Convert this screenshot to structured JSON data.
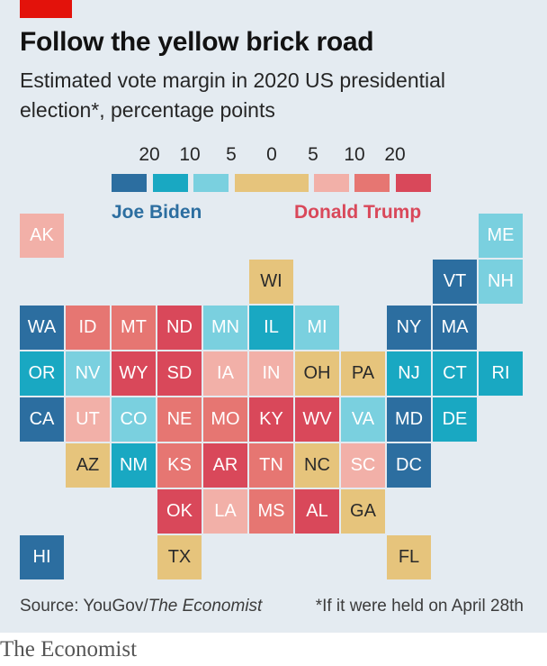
{
  "header": {
    "title": "Follow the yellow brick road",
    "subtitle": "Estimated vote margin in 2020 US presidential election*, percentage points"
  },
  "legend": {
    "ticks": [
      "20",
      "10",
      "5",
      "0",
      "5",
      "10",
      "20"
    ],
    "biden_label": "Joe Biden",
    "trump_label": "Donald Trump",
    "colors": {
      "biden_20": "#2c6ea0",
      "biden_10": "#19a8c2",
      "biden_5": "#7ad0df",
      "tossup": "#e6c47c",
      "trump_5": "#f2b0a8",
      "trump_10": "#e67672",
      "trump_20": "#d9485a"
    }
  },
  "chart_data": {
    "type": "tile-map",
    "categories": [
      "biden_20",
      "biden_10",
      "biden_5",
      "tossup",
      "trump_5",
      "trump_10",
      "trump_20"
    ],
    "category_meaning": {
      "biden_20": "Biden margin 20+",
      "biden_10": "Biden margin 10-20",
      "biden_5": "Biden margin 5-10",
      "tossup": "margin 0-5",
      "trump_5": "Trump margin 5-10",
      "trump_10": "Trump margin 10-20",
      "trump_20": "Trump margin 20+"
    },
    "states": [
      {
        "abbr": "AK",
        "col": 0,
        "row": 0,
        "cat": "trump_5"
      },
      {
        "abbr": "ME",
        "col": 10,
        "row": 0,
        "cat": "biden_5"
      },
      {
        "abbr": "WI",
        "col": 5,
        "row": 1,
        "cat": "tossup"
      },
      {
        "abbr": "VT",
        "col": 9,
        "row": 1,
        "cat": "biden_20"
      },
      {
        "abbr": "NH",
        "col": 10,
        "row": 1,
        "cat": "biden_5"
      },
      {
        "abbr": "WA",
        "col": 0,
        "row": 2,
        "cat": "biden_20"
      },
      {
        "abbr": "ID",
        "col": 1,
        "row": 2,
        "cat": "trump_10"
      },
      {
        "abbr": "MT",
        "col": 2,
        "row": 2,
        "cat": "trump_10"
      },
      {
        "abbr": "ND",
        "col": 3,
        "row": 2,
        "cat": "trump_20"
      },
      {
        "abbr": "MN",
        "col": 4,
        "row": 2,
        "cat": "biden_5"
      },
      {
        "abbr": "IL",
        "col": 5,
        "row": 2,
        "cat": "biden_10"
      },
      {
        "abbr": "MI",
        "col": 6,
        "row": 2,
        "cat": "biden_5"
      },
      {
        "abbr": "NY",
        "col": 8,
        "row": 2,
        "cat": "biden_20"
      },
      {
        "abbr": "MA",
        "col": 9,
        "row": 2,
        "cat": "biden_20"
      },
      {
        "abbr": "OR",
        "col": 0,
        "row": 3,
        "cat": "biden_10"
      },
      {
        "abbr": "NV",
        "col": 1,
        "row": 3,
        "cat": "biden_5"
      },
      {
        "abbr": "WY",
        "col": 2,
        "row": 3,
        "cat": "trump_20"
      },
      {
        "abbr": "SD",
        "col": 3,
        "row": 3,
        "cat": "trump_20"
      },
      {
        "abbr": "IA",
        "col": 4,
        "row": 3,
        "cat": "trump_5"
      },
      {
        "abbr": "IN",
        "col": 5,
        "row": 3,
        "cat": "trump_5"
      },
      {
        "abbr": "OH",
        "col": 6,
        "row": 3,
        "cat": "tossup"
      },
      {
        "abbr": "PA",
        "col": 7,
        "row": 3,
        "cat": "tossup"
      },
      {
        "abbr": "NJ",
        "col": 8,
        "row": 3,
        "cat": "biden_10"
      },
      {
        "abbr": "CT",
        "col": 9,
        "row": 3,
        "cat": "biden_10"
      },
      {
        "abbr": "RI",
        "col": 10,
        "row": 3,
        "cat": "biden_10"
      },
      {
        "abbr": "CA",
        "col": 0,
        "row": 4,
        "cat": "biden_20"
      },
      {
        "abbr": "UT",
        "col": 1,
        "row": 4,
        "cat": "trump_5"
      },
      {
        "abbr": "CO",
        "col": 2,
        "row": 4,
        "cat": "biden_5"
      },
      {
        "abbr": "NE",
        "col": 3,
        "row": 4,
        "cat": "trump_10"
      },
      {
        "abbr": "MO",
        "col": 4,
        "row": 4,
        "cat": "trump_10"
      },
      {
        "abbr": "KY",
        "col": 5,
        "row": 4,
        "cat": "trump_20"
      },
      {
        "abbr": "WV",
        "col": 6,
        "row": 4,
        "cat": "trump_20"
      },
      {
        "abbr": "VA",
        "col": 7,
        "row": 4,
        "cat": "biden_5"
      },
      {
        "abbr": "MD",
        "col": 8,
        "row": 4,
        "cat": "biden_20"
      },
      {
        "abbr": "DE",
        "col": 9,
        "row": 4,
        "cat": "biden_10"
      },
      {
        "abbr": "AZ",
        "col": 1,
        "row": 5,
        "cat": "tossup"
      },
      {
        "abbr": "NM",
        "col": 2,
        "row": 5,
        "cat": "biden_10"
      },
      {
        "abbr": "KS",
        "col": 3,
        "row": 5,
        "cat": "trump_10"
      },
      {
        "abbr": "AR",
        "col": 4,
        "row": 5,
        "cat": "trump_20"
      },
      {
        "abbr": "TN",
        "col": 5,
        "row": 5,
        "cat": "trump_10"
      },
      {
        "abbr": "NC",
        "col": 6,
        "row": 5,
        "cat": "tossup"
      },
      {
        "abbr": "SC",
        "col": 7,
        "row": 5,
        "cat": "trump_5"
      },
      {
        "abbr": "DC",
        "col": 8,
        "row": 5,
        "cat": "biden_20"
      },
      {
        "abbr": "OK",
        "col": 3,
        "row": 6,
        "cat": "trump_20"
      },
      {
        "abbr": "LA",
        "col": 4,
        "row": 6,
        "cat": "trump_5"
      },
      {
        "abbr": "MS",
        "col": 5,
        "row": 6,
        "cat": "trump_10"
      },
      {
        "abbr": "AL",
        "col": 6,
        "row": 6,
        "cat": "trump_20"
      },
      {
        "abbr": "GA",
        "col": 7,
        "row": 6,
        "cat": "tossup"
      },
      {
        "abbr": "HI",
        "col": 0,
        "row": 7,
        "cat": "biden_20"
      },
      {
        "abbr": "TX",
        "col": 3,
        "row": 7,
        "cat": "tossup"
      },
      {
        "abbr": "FL",
        "col": 8,
        "row": 7,
        "cat": "tossup"
      }
    ]
  },
  "footer": {
    "source_prefix": "Source: YouGov/",
    "source_italic": "The Economist",
    "footnote": "*If it were held on April 28th",
    "brand": "The Economist"
  }
}
